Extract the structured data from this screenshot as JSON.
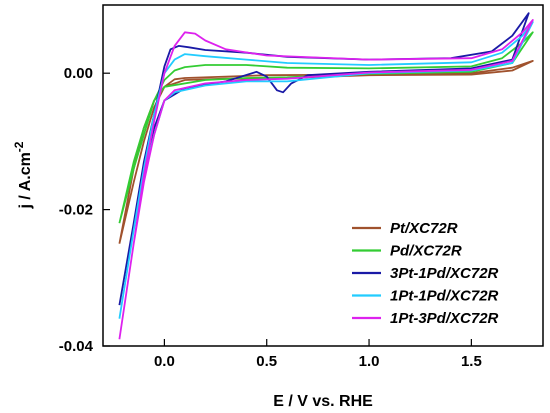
{
  "chart_data": {
    "type": "line",
    "xlabel": "E / V vs. RHE",
    "ylabel_base": "j / A.cm",
    "ylabel_exp": "-2",
    "xlim": [
      -0.3,
      1.85
    ],
    "ylim": [
      -0.04,
      0.01
    ],
    "xticks": [
      {
        "value": 0.0,
        "label": "0.0"
      },
      {
        "value": 0.5,
        "label": "0.5"
      },
      {
        "value": 1.0,
        "label": "1.0"
      },
      {
        "value": 1.5,
        "label": "1.5"
      }
    ],
    "yticks": [
      {
        "value": 0.0,
        "label": "0.00"
      },
      {
        "value": -0.02,
        "label": "-0.02"
      },
      {
        "value": -0.04,
        "label": "-0.04"
      }
    ],
    "grid": false,
    "legend_position": "bottom-right",
    "series": [
      {
        "name": "Pt/XC72R",
        "color": "#a0522d",
        "anodic": [
          [
            -0.22,
            -0.025
          ],
          [
            -0.15,
            -0.016
          ],
          [
            -0.1,
            -0.01
          ],
          [
            -0.05,
            -0.005
          ],
          [
            0.0,
            -0.002
          ],
          [
            0.05,
            -0.0009
          ],
          [
            0.1,
            -0.0007
          ],
          [
            0.3,
            -0.0005
          ],
          [
            0.5,
            -0.0003
          ],
          [
            1.0,
            -0.0002
          ],
          [
            1.5,
            0.0
          ],
          [
            1.7,
            0.0008
          ],
          [
            1.8,
            0.0018
          ]
        ],
        "cathodic": [
          [
            1.8,
            0.0018
          ],
          [
            1.7,
            0.0004
          ],
          [
            1.5,
            -0.0002
          ],
          [
            1.0,
            -0.0003
          ],
          [
            0.5,
            -0.0008
          ],
          [
            0.3,
            -0.0008
          ],
          [
            0.1,
            -0.001
          ],
          [
            0.0,
            -0.002
          ],
          [
            -0.05,
            -0.004
          ],
          [
            -0.1,
            -0.008
          ],
          [
            -0.15,
            -0.014
          ],
          [
            -0.22,
            -0.025
          ]
        ]
      },
      {
        "name": "Pd/XC72R",
        "color": "#33cc33",
        "anodic": [
          [
            -0.22,
            -0.022
          ],
          [
            -0.15,
            -0.014
          ],
          [
            -0.1,
            -0.009
          ],
          [
            -0.05,
            -0.004
          ],
          [
            0.0,
            -0.001
          ],
          [
            0.05,
            0.0004
          ],
          [
            0.1,
            0.0009
          ],
          [
            0.2,
            0.0012
          ],
          [
            0.4,
            0.0012
          ],
          [
            0.6,
            0.0008
          ],
          [
            1.0,
            0.0007
          ],
          [
            1.5,
            0.001
          ],
          [
            1.65,
            0.0022
          ],
          [
            1.75,
            0.0045
          ],
          [
            1.8,
            0.006
          ]
        ],
        "cathodic": [
          [
            1.8,
            0.006
          ],
          [
            1.7,
            0.0015
          ],
          [
            1.5,
            0.0002
          ],
          [
            1.0,
            -0.0001
          ],
          [
            0.6,
            -0.0006
          ],
          [
            0.4,
            -0.0007
          ],
          [
            0.2,
            -0.001
          ],
          [
            0.0,
            -0.002
          ],
          [
            -0.05,
            -0.004
          ],
          [
            -0.1,
            -0.008
          ],
          [
            -0.15,
            -0.013
          ],
          [
            -0.22,
            -0.022
          ]
        ]
      },
      {
        "name": "3Pt-1Pd/XC72R",
        "color": "#1a1aa6",
        "anodic": [
          [
            -0.22,
            -0.034
          ],
          [
            -0.15,
            -0.022
          ],
          [
            -0.1,
            -0.013
          ],
          [
            -0.05,
            -0.006
          ],
          [
            0.0,
            0.001
          ],
          [
            0.03,
            0.0035
          ],
          [
            0.07,
            0.004
          ],
          [
            0.12,
            0.0038
          ],
          [
            0.2,
            0.0034
          ],
          [
            0.4,
            0.003
          ],
          [
            0.6,
            0.0024
          ],
          [
            1.0,
            0.002
          ],
          [
            1.4,
            0.0022
          ],
          [
            1.6,
            0.0032
          ],
          [
            1.7,
            0.0055
          ],
          [
            1.78,
            0.0088
          ]
        ],
        "cathodic": [
          [
            1.78,
            0.0088
          ],
          [
            1.7,
            0.002
          ],
          [
            1.5,
            0.0007
          ],
          [
            1.0,
            0.0002
          ],
          [
            0.7,
            -0.0003
          ],
          [
            0.62,
            -0.0015
          ],
          [
            0.58,
            -0.0028
          ],
          [
            0.55,
            -0.0025
          ],
          [
            0.5,
            -0.0005
          ],
          [
            0.45,
            0.0002
          ],
          [
            0.3,
            -0.0012
          ],
          [
            0.1,
            -0.0022
          ],
          [
            0.0,
            -0.004
          ],
          [
            -0.05,
            -0.008
          ],
          [
            -0.1,
            -0.014
          ],
          [
            -0.15,
            -0.022
          ],
          [
            -0.22,
            -0.034
          ]
        ]
      },
      {
        "name": "1Pt-1Pd/XC72R",
        "color": "#22ccff",
        "anodic": [
          [
            -0.22,
            -0.036
          ],
          [
            -0.15,
            -0.023
          ],
          [
            -0.1,
            -0.014
          ],
          [
            -0.05,
            -0.006
          ],
          [
            0.0,
            0.0
          ],
          [
            0.05,
            0.002
          ],
          [
            0.1,
            0.0028
          ],
          [
            0.2,
            0.0025
          ],
          [
            0.4,
            0.002
          ],
          [
            0.6,
            0.0015
          ],
          [
            1.0,
            0.0012
          ],
          [
            1.5,
            0.0016
          ],
          [
            1.65,
            0.003
          ],
          [
            1.75,
            0.0055
          ],
          [
            1.8,
            0.0075
          ]
        ],
        "cathodic": [
          [
            1.8,
            0.0075
          ],
          [
            1.7,
            0.0015
          ],
          [
            1.5,
            0.0004
          ],
          [
            1.0,
            0.0
          ],
          [
            0.6,
            -0.0012
          ],
          [
            0.4,
            -0.0012
          ],
          [
            0.2,
            -0.0018
          ],
          [
            0.05,
            -0.0028
          ],
          [
            0.0,
            -0.004
          ],
          [
            -0.05,
            -0.009
          ],
          [
            -0.1,
            -0.015
          ],
          [
            -0.15,
            -0.023
          ],
          [
            -0.22,
            -0.036
          ]
        ]
      },
      {
        "name": "1Pt-3Pd/XC72R",
        "color": "#dd22ee",
        "anodic": [
          [
            -0.22,
            -0.039
          ],
          [
            -0.15,
            -0.025
          ],
          [
            -0.1,
            -0.015
          ],
          [
            -0.05,
            -0.007
          ],
          [
            0.0,
            0.0
          ],
          [
            0.05,
            0.004
          ],
          [
            0.1,
            0.006
          ],
          [
            0.15,
            0.0058
          ],
          [
            0.2,
            0.0048
          ],
          [
            0.3,
            0.0035
          ],
          [
            0.5,
            0.0026
          ],
          [
            1.0,
            0.002
          ],
          [
            1.5,
            0.0022
          ],
          [
            1.65,
            0.0035
          ],
          [
            1.75,
            0.006
          ],
          [
            1.8,
            0.0078
          ]
        ],
        "cathodic": [
          [
            1.8,
            0.0078
          ],
          [
            1.7,
            0.0018
          ],
          [
            1.5,
            0.0005
          ],
          [
            1.0,
            0.0001
          ],
          [
            0.6,
            -0.0008
          ],
          [
            0.4,
            -0.001
          ],
          [
            0.2,
            -0.0015
          ],
          [
            0.05,
            -0.0025
          ],
          [
            0.0,
            -0.004
          ],
          [
            -0.05,
            -0.009
          ],
          [
            -0.1,
            -0.016
          ],
          [
            -0.15,
            -0.025
          ],
          [
            -0.22,
            -0.039
          ]
        ]
      }
    ]
  }
}
